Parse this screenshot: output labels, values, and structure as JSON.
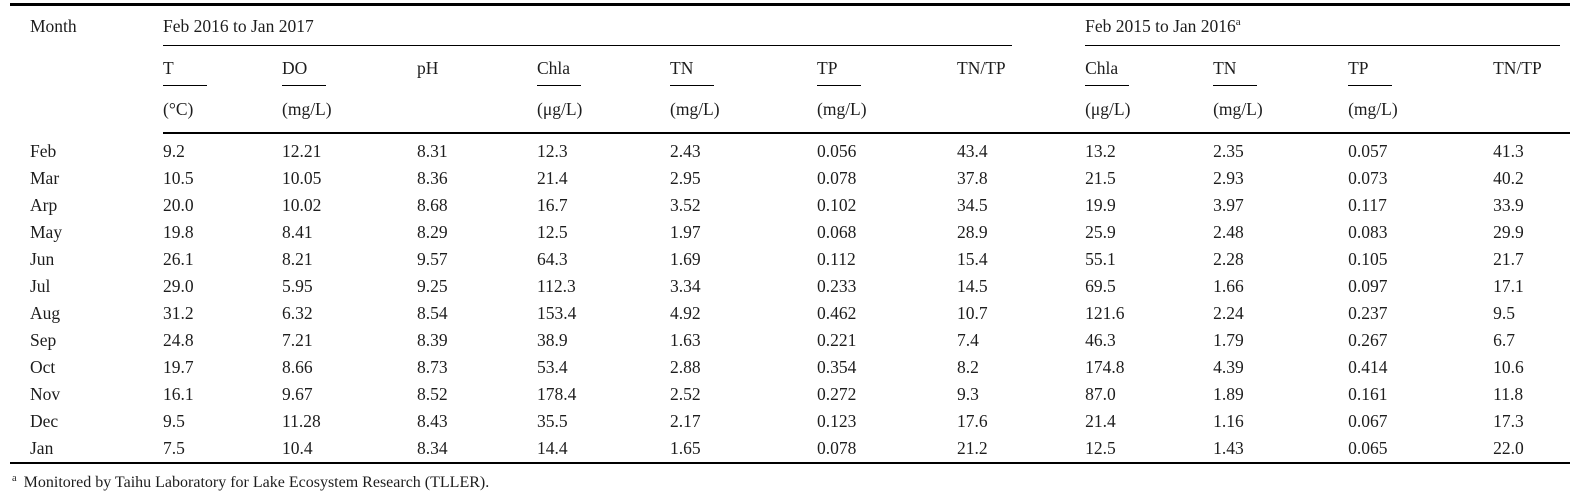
{
  "table": {
    "corner_label": "Month",
    "group1": {
      "title": "Feb 2016 to Jan 2017",
      "superscript": ""
    },
    "group2": {
      "title": "Feb 2015 to Jan 2016",
      "superscript": "a"
    },
    "columns": [
      {
        "label": "T",
        "unit": "(°C)"
      },
      {
        "label": "DO",
        "unit": "(mg/L)"
      },
      {
        "label": "pH",
        "unit": ""
      },
      {
        "label": "Chla",
        "unit": "(μg/L)"
      },
      {
        "label": "TN",
        "unit": "(mg/L)"
      },
      {
        "label": "TP",
        "unit": "(mg/L)"
      },
      {
        "label": "TN/TP",
        "unit": ""
      },
      {
        "label": "Chla",
        "unit": "(μg/L)"
      },
      {
        "label": "TN",
        "unit": "(mg/L)"
      },
      {
        "label": "TP",
        "unit": "(mg/L)"
      },
      {
        "label": "TN/TP",
        "unit": ""
      }
    ],
    "rows": [
      {
        "month": "Feb",
        "values": [
          "9.2",
          "12.21",
          "8.31",
          "12.3",
          "2.43",
          "0.056",
          "43.4",
          "13.2",
          "2.35",
          "0.057",
          "41.3"
        ]
      },
      {
        "month": "Mar",
        "values": [
          "10.5",
          "10.05",
          "8.36",
          "21.4",
          "2.95",
          "0.078",
          "37.8",
          "21.5",
          "2.93",
          "0.073",
          "40.2"
        ]
      },
      {
        "month": "Arp",
        "values": [
          "20.0",
          "10.02",
          "8.68",
          "16.7",
          "3.52",
          "0.102",
          "34.5",
          "19.9",
          "3.97",
          "0.117",
          "33.9"
        ]
      },
      {
        "month": "May",
        "values": [
          "19.8",
          "8.41",
          "8.29",
          "12.5",
          "1.97",
          "0.068",
          "28.9",
          "25.9",
          "2.48",
          "0.083",
          "29.9"
        ]
      },
      {
        "month": "Jun",
        "values": [
          "26.1",
          "8.21",
          "9.57",
          "64.3",
          "1.69",
          "0.112",
          "15.4",
          "55.1",
          "2.28",
          "0.105",
          "21.7"
        ]
      },
      {
        "month": "Jul",
        "values": [
          "29.0",
          "5.95",
          "9.25",
          "112.3",
          "3.34",
          "0.233",
          "14.5",
          "69.5",
          "1.66",
          "0.097",
          "17.1"
        ]
      },
      {
        "month": "Aug",
        "values": [
          "31.2",
          "6.32",
          "8.54",
          "153.4",
          "4.92",
          "0.462",
          "10.7",
          "121.6",
          "2.24",
          "0.237",
          "9.5"
        ]
      },
      {
        "month": "Sep",
        "values": [
          "24.8",
          "7.21",
          "8.39",
          "38.9",
          "1.63",
          "0.221",
          "7.4",
          "46.3",
          "1.79",
          "0.267",
          "6.7"
        ]
      },
      {
        "month": "Oct",
        "values": [
          "19.7",
          "8.66",
          "8.73",
          "53.4",
          "2.88",
          "0.354",
          "8.2",
          "174.8",
          "4.39",
          "0.414",
          "10.6"
        ]
      },
      {
        "month": "Nov",
        "values": [
          "16.1",
          "9.67",
          "8.52",
          "178.4",
          "2.52",
          "0.272",
          "9.3",
          "87.0",
          "1.89",
          "0.161",
          "11.8"
        ]
      },
      {
        "month": "Dec",
        "values": [
          "9.5",
          "11.28",
          "8.43",
          "35.5",
          "2.17",
          "0.123",
          "17.6",
          "21.4",
          "1.16",
          "0.067",
          "17.3"
        ]
      },
      {
        "month": "Jan",
        "values": [
          "7.5",
          "10.4",
          "8.34",
          "14.4",
          "1.65",
          "0.078",
          "21.2",
          "12.5",
          "1.43",
          "0.065",
          "22.0"
        ]
      }
    ]
  },
  "footnote": {
    "marker": "a",
    "text": "Monitored by Taihu Laboratory for Lake Ecosystem Research (TLLER)."
  }
}
